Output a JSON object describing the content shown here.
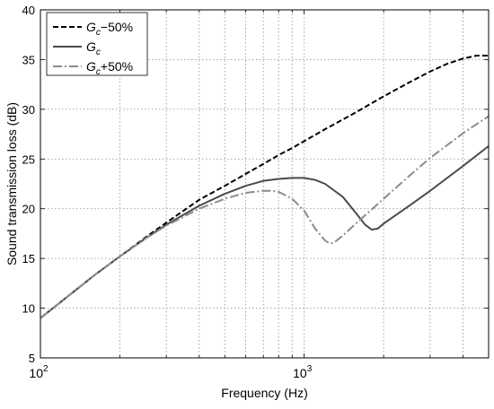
{
  "chart_data": {
    "type": "line",
    "title": "",
    "xlabel": "Frequency (Hz)",
    "ylabel": "Sound transmission loss (dB)",
    "xscale": "log",
    "xlim": [
      100,
      5000
    ],
    "ylim": [
      5,
      40
    ],
    "grid": true,
    "legend_position": "top-left",
    "yticks": [
      "5",
      "10",
      "15",
      "20",
      "25",
      "30",
      "35",
      "40"
    ],
    "xticks": [
      {
        "value": 100,
        "base": "10",
        "exp": "2"
      },
      {
        "value": 1000,
        "base": "10",
        "exp": "3"
      }
    ],
    "series": [
      {
        "name": "Gc−50%",
        "legend_base": "G",
        "legend_sub": "c",
        "legend_suffix": "−50%",
        "color": "#000000",
        "dash": "6 3",
        "width": 2,
        "x": [
          100,
          130,
          160,
          200,
          250,
          300,
          400,
          500,
          600,
          700,
          800,
          900,
          1000,
          1200,
          1500,
          2000,
          2500,
          3000,
          3500,
          4000,
          4500,
          5000
        ],
        "y": [
          9.0,
          11.4,
          13.3,
          15.2,
          17.1,
          18.6,
          20.9,
          22.3,
          23.5,
          24.5,
          25.4,
          26.1,
          26.8,
          28.0,
          29.4,
          31.3,
          32.7,
          33.8,
          34.6,
          35.1,
          35.4,
          35.4
        ]
      },
      {
        "name": "Gc",
        "legend_base": "G",
        "legend_sub": "c",
        "legend_suffix": "",
        "color": "#4a4a4a",
        "dash": "",
        "width": 2,
        "x": [
          100,
          130,
          160,
          200,
          250,
          300,
          400,
          500,
          600,
          700,
          800,
          900,
          950,
          1000,
          1100,
          1200,
          1400,
          1600,
          1700,
          1800,
          1900,
          2000,
          2500,
          3000,
          4000,
          5000
        ],
        "y": [
          9.0,
          11.4,
          13.3,
          15.2,
          17.0,
          18.4,
          20.3,
          21.5,
          22.3,
          22.8,
          23.0,
          23.1,
          23.1,
          23.1,
          22.9,
          22.5,
          21.2,
          19.3,
          18.4,
          17.9,
          18.0,
          18.5,
          20.3,
          21.8,
          24.3,
          26.3
        ]
      },
      {
        "name": "Gc+50%",
        "legend_base": "G",
        "legend_sub": "c",
        "legend_suffix": "+50%",
        "color": "#8c8c8c",
        "dash": "10 3 2 3",
        "width": 2,
        "x": [
          100,
          130,
          160,
          200,
          250,
          300,
          400,
          500,
          600,
          700,
          750,
          800,
          900,
          1000,
          1100,
          1200,
          1250,
          1300,
          1400,
          1600,
          2000,
          2500,
          3000,
          4000,
          5000
        ],
        "y": [
          9.0,
          11.4,
          13.3,
          15.2,
          17.0,
          18.3,
          20.0,
          21.0,
          21.6,
          21.8,
          21.8,
          21.7,
          21.0,
          19.8,
          18.0,
          16.8,
          16.5,
          16.6,
          17.3,
          18.7,
          21.0,
          23.3,
          25.1,
          27.6,
          29.3
        ]
      }
    ]
  }
}
